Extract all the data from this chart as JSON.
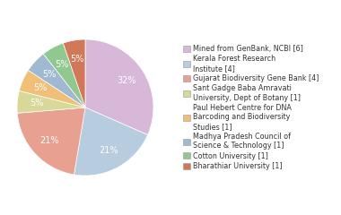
{
  "legend_labels": [
    "Mined from GenBank, NCBI [6]",
    "Kerala Forest Research\nInstitute [4]",
    "Gujarat Biodiversity Gene Bank [4]",
    "Sant Gadge Baba Amravati\nUniversity, Dept of Botany [1]",
    "Paul Hebert Centre for DNA\nBarcoding and Biodiversity\nStudies [1]",
    "Madhya Pradesh Council of\nScience & Technology [1]",
    "Cotton University [1]",
    "Bharathiar University [1]"
  ],
  "values": [
    6,
    4,
    4,
    1,
    1,
    1,
    1,
    1
  ],
  "colors": [
    "#d8b8d8",
    "#b8cce0",
    "#e8a090",
    "#d8d898",
    "#f0c078",
    "#a0b8d0",
    "#90c890",
    "#d07858"
  ],
  "text_color": "#ffffff",
  "pct_fontsize": 7,
  "legend_fontsize": 5.8,
  "startangle": 90,
  "counterclock": false
}
